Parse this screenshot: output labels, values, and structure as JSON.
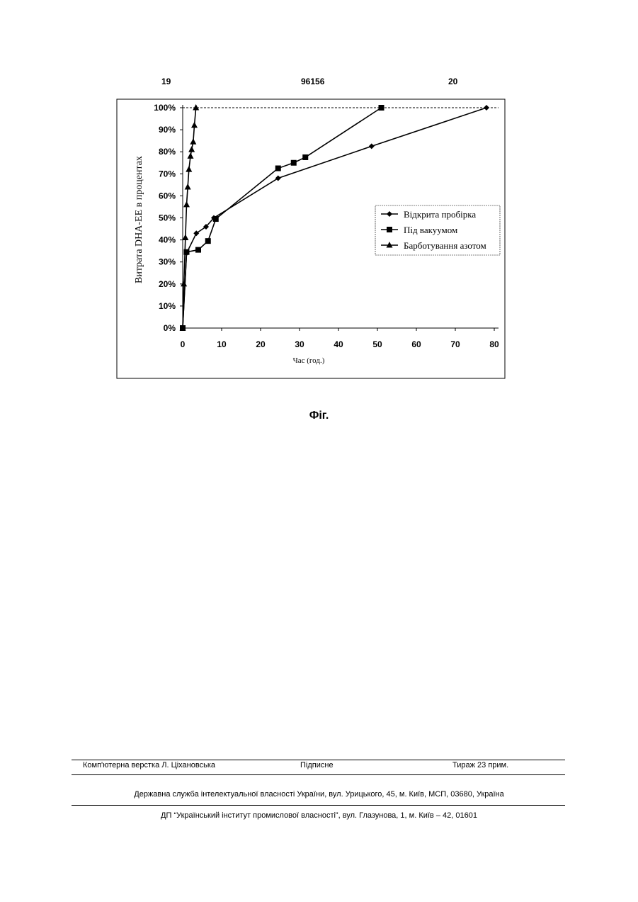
{
  "page": {
    "number_left": "19",
    "patent_number": "96156",
    "number_right": "20"
  },
  "figure_caption": "Фіг.",
  "chart_data": {
    "type": "line",
    "xlabel": "Час (год.)",
    "ylabel": "Витрата DHA-EE в процентах",
    "xlim": [
      0,
      80
    ],
    "ylim": [
      0,
      100
    ],
    "x_ticks": [
      "0",
      "10",
      "20",
      "30",
      "40",
      "50",
      "60",
      "70",
      "80"
    ],
    "y_ticks": [
      "0%",
      "10%",
      "20%",
      "30%",
      "40%",
      "50%",
      "60%",
      "70%",
      "80%",
      "90%",
      "100%"
    ],
    "grid": false,
    "legend_position": "right",
    "series": [
      {
        "name": "Відкрита пробірка",
        "marker": "diamond",
        "points": [
          [
            0,
            0
          ],
          [
            1,
            34
          ],
          [
            3.5,
            43
          ],
          [
            6,
            46
          ],
          [
            8,
            50
          ],
          [
            24.5,
            68
          ],
          [
            48.5,
            82.5
          ],
          [
            78,
            100
          ]
        ]
      },
      {
        "name": "Під вакуумом",
        "marker": "square",
        "points": [
          [
            0,
            0
          ],
          [
            1,
            34.5
          ],
          [
            4,
            35.5
          ],
          [
            6.5,
            39.5
          ],
          [
            8.5,
            49.5
          ],
          [
            24.5,
            72.5
          ],
          [
            28.5,
            75
          ],
          [
            31.5,
            77.5
          ],
          [
            51,
            100
          ]
        ]
      },
      {
        "name": "Барботування азотом",
        "marker": "triangle",
        "points": [
          [
            0,
            0
          ],
          [
            0.3,
            20
          ],
          [
            0.7,
            41
          ],
          [
            1,
            56
          ],
          [
            1.3,
            64
          ],
          [
            1.6,
            72
          ],
          [
            2,
            78
          ],
          [
            2.3,
            81
          ],
          [
            2.7,
            84.5
          ],
          [
            3,
            92
          ],
          [
            3.4,
            100
          ]
        ]
      }
    ]
  },
  "footer": {
    "composer": "Комп'ютерна верстка Л. Ціхановська",
    "signed": "Підписне",
    "circulation": "Тираж 23 прим.",
    "agency": "Державна служба інтелектуальної власності України, вул. Урицького, 45, м. Київ, МСП, 03680, Україна",
    "institute": "ДП “Український інститут промислової власності”, вул. Глазунова, 1, м. Київ – 42, 01601"
  }
}
